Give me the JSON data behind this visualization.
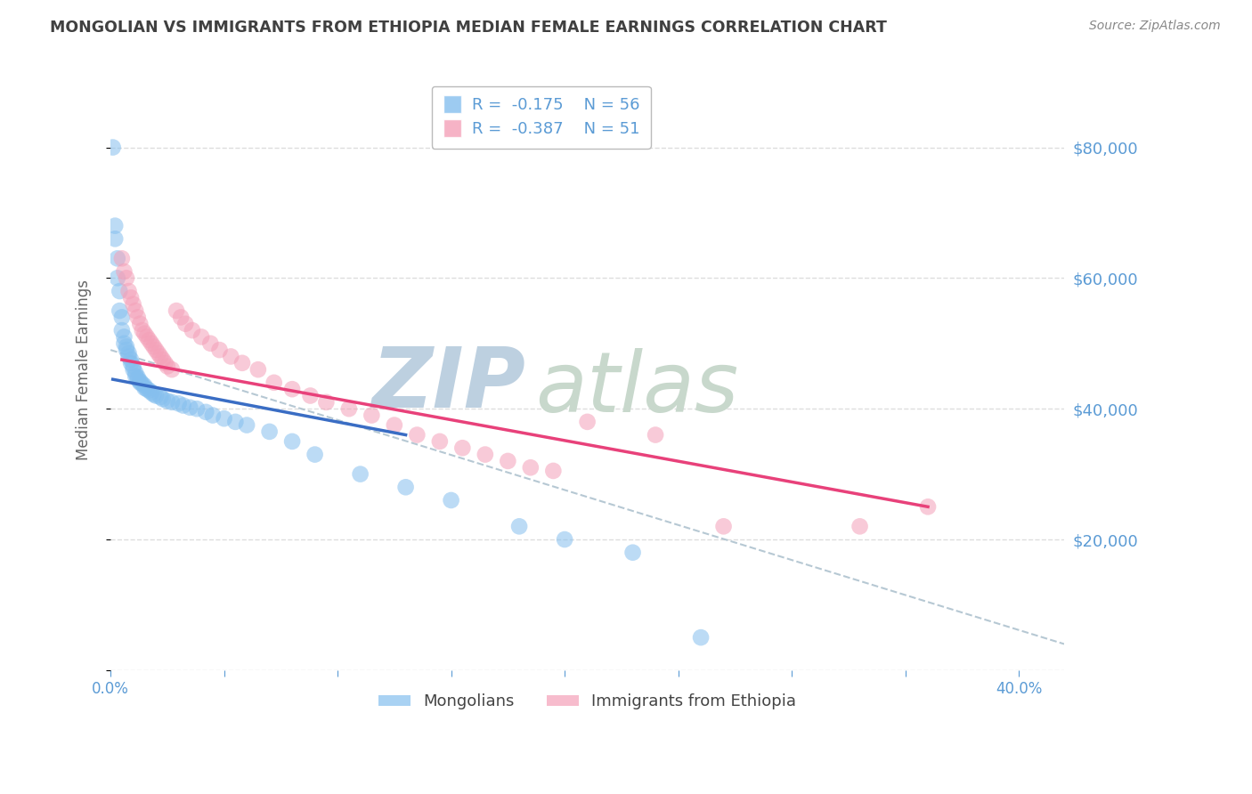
{
  "title": "MONGOLIAN VS IMMIGRANTS FROM ETHIOPIA MEDIAN FEMALE EARNINGS CORRELATION CHART",
  "source": "Source: ZipAtlas.com",
  "ylabel": "Median Female Earnings",
  "xlim": [
    0.0,
    0.42
  ],
  "ylim": [
    0,
    92000
  ],
  "yticks": [
    0,
    20000,
    40000,
    60000,
    80000
  ],
  "xticks": [
    0.0,
    0.05,
    0.1,
    0.15,
    0.2,
    0.25,
    0.3,
    0.35,
    0.4
  ],
  "mongolians_R": -0.175,
  "mongolians_N": 56,
  "ethiopia_R": -0.387,
  "ethiopia_N": 51,
  "legend_labels": [
    "Mongolians",
    "Immigrants from Ethiopia"
  ],
  "mongolians_color": "#85BFEE",
  "ethiopia_color": "#F4A0B8",
  "trend_mongolia_color": "#3A6DC4",
  "trend_ethiopia_color": "#E8417A",
  "trend_dashed_color": "#AABFCC",
  "watermark_zip": "ZIP",
  "watermark_atlas": "atlas",
  "watermark_color_zip": "#BDD0E0",
  "watermark_color_atlas": "#C8D8CC",
  "title_color": "#404040",
  "source_color": "#888888",
  "axis_color": "#5B9BD5",
  "tick_color": "#5B9BD5",
  "background_color": "#FFFFFF",
  "grid_color": "#DDDDDD",
  "mongolians_x": [
    0.001,
    0.002,
    0.002,
    0.003,
    0.003,
    0.004,
    0.004,
    0.005,
    0.005,
    0.006,
    0.006,
    0.007,
    0.007,
    0.008,
    0.008,
    0.009,
    0.009,
    0.01,
    0.01,
    0.011,
    0.011,
    0.012,
    0.012,
    0.013,
    0.013,
    0.014,
    0.015,
    0.015,
    0.016,
    0.017,
    0.018,
    0.019,
    0.02,
    0.022,
    0.023,
    0.025,
    0.027,
    0.03,
    0.032,
    0.035,
    0.038,
    0.042,
    0.045,
    0.05,
    0.055,
    0.06,
    0.07,
    0.08,
    0.09,
    0.11,
    0.13,
    0.15,
    0.18,
    0.2,
    0.23,
    0.26
  ],
  "mongolians_y": [
    80000,
    68000,
    66000,
    63000,
    60000,
    58000,
    55000,
    54000,
    52000,
    51000,
    50000,
    49500,
    49000,
    48500,
    48000,
    47500,
    47000,
    46500,
    46000,
    45500,
    45000,
    44800,
    44500,
    44200,
    44000,
    43800,
    43500,
    43200,
    43000,
    42800,
    42500,
    42200,
    42000,
    41800,
    41500,
    41200,
    41000,
    40800,
    40500,
    40200,
    40000,
    39500,
    39000,
    38500,
    38000,
    37500,
    36500,
    35000,
    33000,
    30000,
    28000,
    26000,
    22000,
    20000,
    18000,
    5000
  ],
  "ethiopia_x": [
    0.005,
    0.006,
    0.007,
    0.008,
    0.009,
    0.01,
    0.011,
    0.012,
    0.013,
    0.014,
    0.015,
    0.016,
    0.017,
    0.018,
    0.019,
    0.02,
    0.021,
    0.022,
    0.023,
    0.024,
    0.025,
    0.027,
    0.029,
    0.031,
    0.033,
    0.036,
    0.04,
    0.044,
    0.048,
    0.053,
    0.058,
    0.065,
    0.072,
    0.08,
    0.088,
    0.095,
    0.105,
    0.115,
    0.125,
    0.135,
    0.145,
    0.155,
    0.165,
    0.175,
    0.185,
    0.195,
    0.21,
    0.24,
    0.27,
    0.33,
    0.36
  ],
  "ethiopia_y": [
    63000,
    61000,
    60000,
    58000,
    57000,
    56000,
    55000,
    54000,
    53000,
    52000,
    51500,
    51000,
    50500,
    50000,
    49500,
    49000,
    48500,
    48000,
    47500,
    47000,
    46500,
    46000,
    55000,
    54000,
    53000,
    52000,
    51000,
    50000,
    49000,
    48000,
    47000,
    46000,
    44000,
    43000,
    42000,
    41000,
    40000,
    39000,
    37500,
    36000,
    35000,
    34000,
    33000,
    32000,
    31000,
    30500,
    38000,
    36000,
    22000,
    22000,
    25000
  ],
  "mongolia_trend_x": [
    0.001,
    0.13
  ],
  "mongolia_trend_y": [
    44500,
    36000
  ],
  "ethiopia_trend_x": [
    0.005,
    0.36
  ],
  "ethiopia_trend_y": [
    47500,
    25000
  ],
  "dashed_trend_x": [
    0.0,
    0.42
  ],
  "dashed_trend_y": [
    49000,
    4000
  ]
}
